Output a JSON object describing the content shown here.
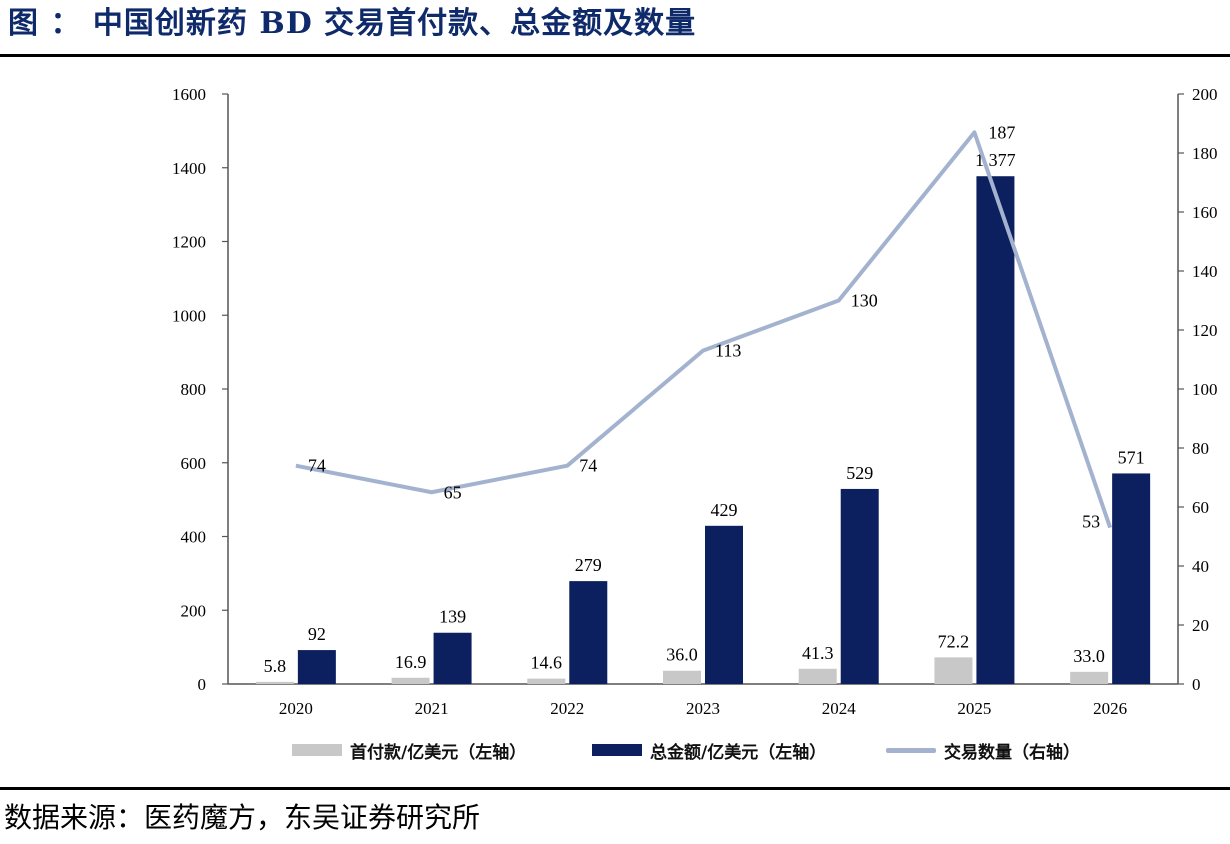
{
  "header": {
    "title": "图 ： 中国创新药 BD 交易首付款、总金额及数量"
  },
  "footer": {
    "source": "数据来源：医药魔方，东吴证券研究所"
  },
  "chart_data": {
    "type": "bar",
    "categories": [
      "2020",
      "2021",
      "2022",
      "2023",
      "2024",
      "2025",
      "2026"
    ],
    "series": [
      {
        "name": "首付款/亿美元（左轴）",
        "type": "bar",
        "axis": "left",
        "values": [
          5.8,
          16.9,
          14.6,
          36.0,
          41.3,
          72.2,
          33.0
        ],
        "labels": [
          "5.8",
          "16.9",
          "14.6",
          "36.0",
          "41.3",
          "72.2",
          "33.0"
        ],
        "color": "#c8c8c8"
      },
      {
        "name": "总金额/亿美元（左轴）",
        "type": "bar",
        "axis": "left",
        "values": [
          92,
          139,
          279,
          429,
          529,
          1377,
          571
        ],
        "labels": [
          "92",
          "139",
          "279",
          "429",
          "529",
          "1,377",
          "571"
        ],
        "color": "#0c1f5e"
      },
      {
        "name": "交易数量（右轴）",
        "type": "line",
        "axis": "right",
        "values": [
          74,
          65,
          74,
          113,
          130,
          187,
          53
        ],
        "labels": [
          "74",
          "65",
          "74",
          "113",
          "130",
          "187",
          "53"
        ],
        "color": "#a3b3cf"
      }
    ],
    "y_left": {
      "min": 0,
      "max": 1600,
      "ticks": [
        "0",
        "200",
        "400",
        "600",
        "800",
        "1000",
        "1200",
        "1400",
        "1600"
      ]
    },
    "y_right": {
      "min": 0,
      "max": 200,
      "ticks": [
        "0",
        "20",
        "40",
        "60",
        "80",
        "100",
        "120",
        "140",
        "160",
        "180",
        "200"
      ]
    },
    "grid": false,
    "legend_position": "bottom"
  }
}
